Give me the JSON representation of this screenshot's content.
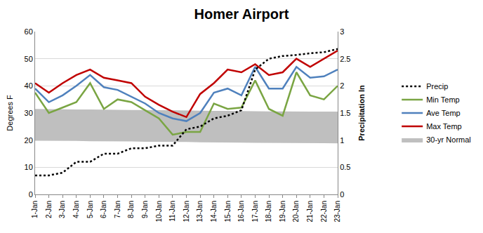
{
  "chart_data": {
    "type": "line",
    "title": "Homer Airport",
    "y_label": "Degrees F",
    "y2_label": "Precipitation In",
    "categories": [
      "1-Jan",
      "2-Jan",
      "3-Jan",
      "4-Jan",
      "5-Jan",
      "6-Jan",
      "7-Jan",
      "8-Jan",
      "9-Jan",
      "10-Jan",
      "11-Jan",
      "12-Jan",
      "13-Jan",
      "14-Jan",
      "15-Jan",
      "16-Jan",
      "17-Jan",
      "18-Jan",
      "19-Jan",
      "20-Jan",
      "21-Jan",
      "22-Jan",
      "23-Jan"
    ],
    "ylim": [
      0,
      60
    ],
    "yticks": [
      0,
      10,
      20,
      30,
      40,
      50,
      60
    ],
    "y2lim": [
      0,
      3
    ],
    "y2ticks": [
      0,
      0.5,
      1,
      1.5,
      2,
      2.5,
      3
    ],
    "grid": true,
    "legend": "right",
    "series": [
      {
        "name": "30-yr Normal",
        "type": "band",
        "color": "#bfbfbf",
        "low": [
          19.8,
          19.8,
          19.7,
          19.7,
          19.6,
          19.6,
          19.5,
          19.5,
          19.4,
          19.4,
          19.3,
          19.3,
          19.2,
          19.2,
          19.1,
          19.1,
          19.0,
          19.0,
          19.0,
          18.9,
          18.9,
          18.9,
          18.8
        ],
        "high": [
          31.5,
          31.4,
          31.4,
          31.3,
          31.3,
          31.2,
          31.2,
          31.1,
          31.1,
          31.0,
          31.0,
          30.9,
          30.9,
          30.8,
          30.8,
          30.7,
          30.7,
          30.6,
          30.6,
          30.5,
          30.5,
          30.5,
          30.5
        ]
      },
      {
        "name": "Max Temp",
        "type": "line",
        "color": "#c00000",
        "line_style": "solid",
        "values": [
          41,
          37.5,
          41,
          44,
          46,
          43,
          42,
          41,
          36,
          33,
          30.5,
          28.5,
          37,
          41,
          46,
          45,
          48,
          44,
          45,
          50,
          47,
          50,
          53
        ]
      },
      {
        "name": "Ave Temp",
        "type": "line",
        "color": "#4f81bd",
        "line_style": "solid",
        "values": [
          39,
          34,
          36.5,
          40,
          44,
          39.5,
          38.5,
          36,
          33.5,
          30,
          28,
          27,
          30,
          37.5,
          39,
          36.5,
          47,
          39,
          39,
          47,
          43,
          43.5,
          46
        ]
      },
      {
        "name": "Min Temp",
        "type": "line",
        "color": "#7aa543",
        "line_style": "solid",
        "values": [
          37.5,
          30,
          32,
          34,
          41,
          31.5,
          35,
          34,
          31,
          28,
          22,
          23,
          23,
          33.5,
          31.5,
          32,
          42,
          31.5,
          29,
          45,
          36.5,
          35,
          40
        ]
      },
      {
        "name": "Precip",
        "type": "line",
        "color": "#000000",
        "line_style": "dotted",
        "axis": "y2",
        "values": [
          0.35,
          0.35,
          0.4,
          0.6,
          0.6,
          0.75,
          0.75,
          0.85,
          0.85,
          0.9,
          0.9,
          1.2,
          1.25,
          1.4,
          1.45,
          1.55,
          2.3,
          2.5,
          2.55,
          2.57,
          2.6,
          2.62,
          2.68
        ]
      }
    ]
  }
}
